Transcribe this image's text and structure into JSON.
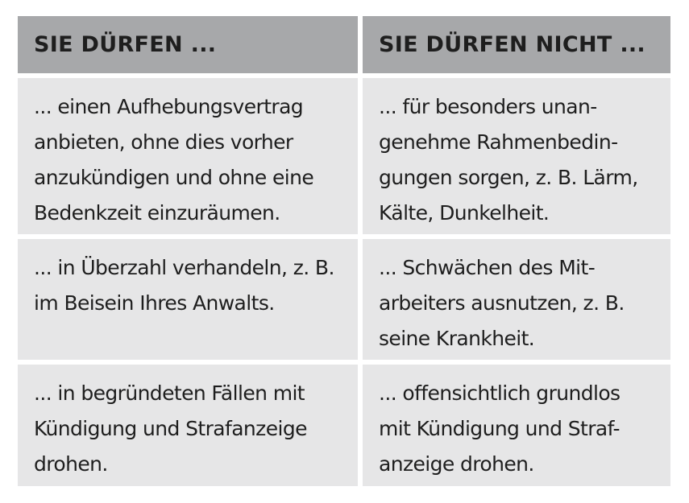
{
  "headers": [
    "SIE DÜRFEN ...",
    "SIE DÜRFEN NICHT ..."
  ],
  "rows": [
    {
      "left": [
        "... einen Aufhebungsvertrag",
        "anbieten, ohne dies vorher",
        "anzukündigen und ohne eine",
        "Bedenkzeit einzuräumen."
      ],
      "right": [
        "... für besonders unan-",
        "genehme Rahmenbedin-",
        "gungen sorgen, z. B. Lärm,",
        "Kälte, Dunkelheit."
      ]
    },
    {
      "left": [
        "... in Überzahl verhandeln, z. B.",
        "im Beisein Ihres Anwalts."
      ],
      "right": [
        "... Schwächen des Mit-",
        "arbeiters ausnutzen, z. B.",
        "seine Krankheit."
      ]
    },
    {
      "left": [
        "... in begründeten Fällen mit",
        "Kündigung und Strafanzeige",
        "drohen."
      ],
      "right": [
        "... offensichtlich grundlos",
        "mit Kündigung und Straf-",
        "anzeige drohen."
      ]
    }
  ]
}
